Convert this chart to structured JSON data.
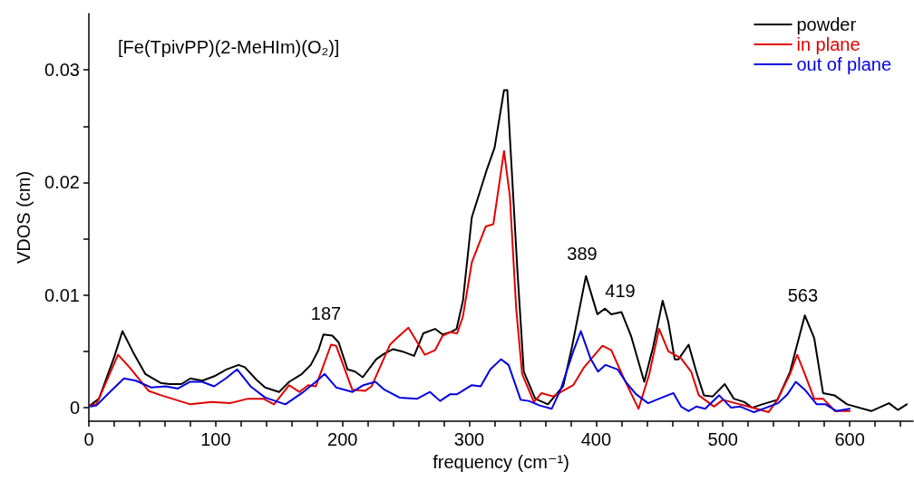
{
  "chart_data": {
    "type": "line",
    "xlabel": "frequency (cm⁻¹)",
    "ylabel": "VDOS (cm)",
    "annotations": [
      "[Fe(TpivPP)(2-MeHIm)(O₂)]",
      {
        "text": "187",
        "x": 187,
        "y": 0.0066
      },
      {
        "text": "389",
        "x": 389,
        "y": 0.0119
      },
      {
        "text": "419",
        "x": 419,
        "y": 0.0086
      },
      {
        "text": "563",
        "x": 563,
        "y": 0.0082
      }
    ],
    "xlim": [
      0,
      650
    ],
    "ylim": [
      -0.0012,
      0.035
    ],
    "xticks": [
      0,
      {
        "value": 20,
        "label": null
      },
      {
        "value": 40,
        "label": null
      },
      {
        "value": 60,
        "label": null
      },
      {
        "value": 80,
        "label": null
      },
      100,
      {
        "value": 120,
        "label": null
      },
      {
        "value": 140,
        "label": null
      },
      {
        "value": 160,
        "label": null
      },
      {
        "value": 180,
        "label": null
      },
      200,
      {
        "value": 220,
        "label": null
      },
      {
        "value": 240,
        "label": null
      },
      {
        "value": 260,
        "label": null
      },
      {
        "value": 280,
        "label": null
      },
      300,
      {
        "value": 320,
        "label": null
      },
      {
        "value": 340,
        "label": null
      },
      {
        "value": 360,
        "label": null
      },
      {
        "value": 380,
        "label": null
      },
      400,
      {
        "value": 420,
        "label": null
      },
      {
        "value": 440,
        "label": null
      },
      {
        "value": 460,
        "label": null
      },
      {
        "value": 480,
        "label": null
      },
      500,
      {
        "value": 520,
        "label": null
      },
      {
        "value": 540,
        "label": null
      },
      {
        "value": 560,
        "label": null
      },
      {
        "value": 580,
        "label": null
      },
      600,
      {
        "value": 620,
        "label": null
      },
      {
        "value": 640,
        "label": null
      }
    ],
    "yticks": [
      0,
      {
        "value": 0.005,
        "label": null
      },
      0.01,
      {
        "value": 0.015,
        "label": null
      },
      0.02,
      {
        "value": 0.025,
        "label": null
      },
      0.03
    ],
    "grid": false,
    "legend": "top right",
    "marker": "none",
    "line_style": "solid",
    "series": [
      {
        "name": "powder",
        "color": "#000000",
        "x": [
          1,
          8,
          20,
          26.5,
          35,
          44.5,
          56.5,
          63.7,
          73,
          80,
          89.5,
          99,
          108.5,
          118,
          123,
          132,
          139,
          150,
          158,
          168,
          175,
          181,
          185,
          192,
          197,
          204,
          210,
          216,
          226.6,
          233,
          240,
          247,
          256.5,
          263.7,
          273,
          279,
          285,
          290,
          295,
          302,
          314,
          320,
          327.4,
          330,
          332,
          338,
          343,
          352,
          362,
          374,
          381,
          392,
          401,
          407,
          412,
          420,
          427.5,
          438,
          445,
          452.5,
          457,
          462,
          465,
          473,
          479,
          485,
          492,
          501.5,
          508.6,
          517,
          523,
          531,
          543,
          553,
          564.6,
          572,
          579,
          588,
          598,
          617,
          631,
          638,
          645
        ],
        "values": [
          0.0002,
          0.0008,
          0.0045,
          0.0068,
          0.0049,
          0.003,
          0.0022,
          0.0021,
          0.0021,
          0.0026,
          0.0024,
          0.0028,
          0.0034,
          0.0038,
          0.0036,
          0.0025,
          0.0018,
          0.0014,
          0.0023,
          0.003,
          0.0038,
          0.0051,
          0.0065,
          0.0064,
          0.0058,
          0.0034,
          0.0032,
          0.0027,
          0.0043,
          0.0048,
          0.0052,
          0.005,
          0.0046,
          0.0066,
          0.007,
          0.0065,
          0.0067,
          0.007,
          0.0095,
          0.0169,
          0.0212,
          0.0231,
          0.0282,
          0.0282,
          0.0241,
          0.0121,
          0.0032,
          0.0008,
          0.0003,
          0.0019,
          0.0054,
          0.0117,
          0.0083,
          0.0088,
          0.0083,
          0.0085,
          0.0064,
          0.0023,
          0.0054,
          0.0095,
          0.0076,
          0.0043,
          0.0043,
          0.0056,
          0.0032,
          0.0011,
          0.001,
          0.0021,
          0.0008,
          0.0005,
          0,
          0.0003,
          0.0007,
          0.0032,
          0.0082,
          0.0062,
          0.0013,
          0.0011,
          0.0003,
          -0.0003,
          0.0004,
          -0.0002,
          0.0003
        ]
      },
      {
        "name": "in plane",
        "color": "#e00000",
        "x": [
          1.4,
          6,
          23,
          32,
          47,
          57,
          80,
          97,
          111,
          125.5,
          137.5,
          146,
          158,
          166,
          173,
          179,
          191,
          195,
          207.7,
          218,
          223,
          237.5,
          242,
          252,
          265,
          273,
          279,
          285,
          290.4,
          295,
          302,
          313,
          319,
          327.4,
          332,
          337,
          341.7,
          351,
          357,
          366,
          382,
          390.6,
          405,
          412,
          421.5,
          433.5,
          442,
          449.7,
          457,
          466.9,
          475,
          481,
          493,
          500,
          510,
          520,
          526.5,
          536,
          543,
          553,
          558.6,
          564.6,
          572,
          579,
          588.5,
          600
        ],
        "values": [
          0.0002,
          0.0003,
          0.0047,
          0.0036,
          0.0015,
          0.0011,
          0.0003,
          0.0005,
          0.0004,
          0.0008,
          0.0008,
          0.0003,
          0.002,
          0.0014,
          0.002,
          0.0019,
          0.0056,
          0.0055,
          0.0016,
          0.0015,
          0.0019,
          0.0056,
          0.0061,
          0.0071,
          0.0047,
          0.0051,
          0.0064,
          0.0067,
          0.0066,
          0.0081,
          0.0129,
          0.0161,
          0.0163,
          0.0228,
          0.0188,
          0.0088,
          0.003,
          0.0005,
          0.0013,
          0.001,
          0.002,
          0.0036,
          0.0055,
          0.0051,
          0.0027,
          -0.0001,
          0.003,
          0.007,
          0.005,
          0.0044,
          0.0032,
          0.0011,
          0.0001,
          0.0007,
          0.0004,
          0.0001,
          -0.0001,
          -0.0004,
          0.0007,
          0.003,
          0.0047,
          0.003,
          0.0008,
          0.0008,
          -0.0003,
          -0.0003
        ]
      },
      {
        "name": "out of plane",
        "color": "#0000e0",
        "x": [
          1.4,
          6,
          15.7,
          27.7,
          37,
          49,
          60.8,
          70.3,
          79.8,
          89.3,
          98.8,
          108,
          117,
          127.5,
          139,
          155,
          168,
          179,
          186,
          195,
          208,
          216.5,
          226,
          233,
          245,
          259,
          269,
          277,
          285,
          290.4,
          302,
          309,
          316.6,
          325,
          331,
          340.5,
          347,
          355.5,
          365,
          372,
          382,
          388,
          395.5,
          401.5,
          407.5,
          417,
          424,
          431.5,
          441,
          452,
          461,
          467,
          473,
          479,
          486,
          497,
          506.5,
          513.7,
          524.5,
          534,
          543.5,
          551,
          557.5,
          564.6,
          574,
          581,
          589.5,
          600
        ],
        "values": [
          0.0001,
          0.0002,
          0.0013,
          0.0026,
          0.0024,
          0.0018,
          0.0019,
          0.0017,
          0.0023,
          0.0023,
          0.0019,
          0.0026,
          0.0034,
          0.0019,
          0.0009,
          0.0003,
          0.0013,
          0.0023,
          0.003,
          0.0018,
          0.0014,
          0.002,
          0.0023,
          0.0016,
          0.0009,
          0.0008,
          0.0014,
          0.0006,
          0.0012,
          0.0012,
          0.002,
          0.0019,
          0.0034,
          0.0043,
          0.0038,
          0.0007,
          0.0006,
          0.0002,
          -0.0001,
          0.0016,
          0.005,
          0.0068,
          0.0044,
          0.0032,
          0.0038,
          0.0034,
          0.0022,
          0.0012,
          0.0004,
          0.0009,
          0.0013,
          0.0001,
          -0.0003,
          0.0001,
          -0.0001,
          0.0011,
          0,
          0.0001,
          -0.0004,
          0,
          0.0004,
          0.0012,
          0.0023,
          0.0016,
          0.0003,
          0.0003,
          -0.0003,
          -0.0001
        ]
      }
    ]
  }
}
